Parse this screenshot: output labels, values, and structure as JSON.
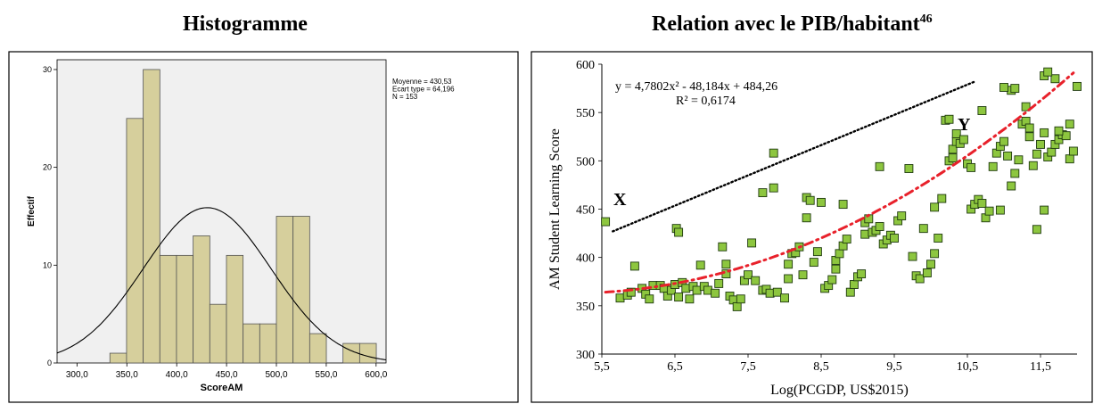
{
  "headings": {
    "left": "Histogramme",
    "right": "Relation avec le PIB/habitant",
    "right_note": "46"
  },
  "chart_data": [
    {
      "type": "bar",
      "title": "",
      "xlabel": "ScoreAM",
      "ylabel": "Effectif",
      "bin_width": 16.7,
      "bin_start": 333,
      "values": [
        1,
        25,
        30,
        11,
        11,
        13,
        6,
        11,
        4,
        4,
        15,
        15,
        3,
        0,
        2,
        2
      ],
      "xlim": [
        280,
        610
      ],
      "ylim": [
        0,
        31
      ],
      "x_ticks": [
        300,
        350,
        400,
        450,
        500,
        550,
        600
      ],
      "x_tick_labels": [
        "300,0",
        "350,0",
        "400,0",
        "450,0",
        "500,0",
        "550,0",
        "600,0"
      ],
      "y_ticks": [
        0,
        10,
        20,
        30
      ],
      "y_tick_labels": [
        "0",
        "10",
        "20",
        "30"
      ],
      "normal_curve": {
        "mean": 430.53,
        "sd": 64.196,
        "n": 153
      },
      "stats": [
        "Moyenne = 430,53",
        "Ecart type = 64,196",
        "N = 153"
      ],
      "bar_color": "#d6cf9c",
      "grid": false
    },
    {
      "type": "scatter",
      "title": "",
      "xlabel": "Log(PCGDP, US$2015)",
      "ylabel": "AM Student Learning Score",
      "xlim": [
        5.5,
        12.0
      ],
      "ylim": [
        300,
        600
      ],
      "x_ticks": [
        5.5,
        6.5,
        7.5,
        8.5,
        9.5,
        10.5,
        11.5
      ],
      "x_tick_labels": [
        "5,5",
        "6,5",
        "7,5",
        "8,5",
        "9,5",
        "10,5",
        "11,5"
      ],
      "y_ticks": [
        300,
        350,
        400,
        450,
        500,
        550,
        600
      ],
      "y_tick_labels": [
        "300",
        "350",
        "400",
        "450",
        "500",
        "550",
        "600"
      ],
      "equation": "y = 4,7802x² - 48,184x + 484,26",
      "r_squared": "R² = 0,6174",
      "label_x": "X",
      "label_y": "Y",
      "point_color": "#8dc63f",
      "trend_color": "#e8212b",
      "grid": false,
      "trend": {
        "a": 4.7802,
        "b": -48.184,
        "c": 484.26,
        "x_start": 5.55,
        "x_end": 11.95
      },
      "reference_line": {
        "x": [
          5.65,
          10.6
        ],
        "y": [
          427,
          582
        ]
      },
      "points": [
        [
          5.55,
          437
        ],
        [
          5.75,
          358
        ],
        [
          5.85,
          361
        ],
        [
          5.9,
          364
        ],
        [
          5.95,
          391
        ],
        [
          6.05,
          368
        ],
        [
          6.1,
          362
        ],
        [
          6.15,
          357
        ],
        [
          6.2,
          371
        ],
        [
          6.3,
          371
        ],
        [
          6.35,
          368
        ],
        [
          6.4,
          360
        ],
        [
          6.45,
          366
        ],
        [
          6.5,
          372
        ],
        [
          6.52,
          430
        ],
        [
          6.55,
          426
        ],
        [
          6.55,
          359
        ],
        [
          6.6,
          374
        ],
        [
          6.65,
          368
        ],
        [
          6.7,
          357
        ],
        [
          6.75,
          370
        ],
        [
          6.8,
          366
        ],
        [
          6.85,
          392
        ],
        [
          6.9,
          370
        ],
        [
          6.95,
          366
        ],
        [
          7.05,
          363
        ],
        [
          7.1,
          373
        ],
        [
          7.15,
          411
        ],
        [
          7.2,
          383
        ],
        [
          7.2,
          393
        ],
        [
          7.25,
          360
        ],
        [
          7.3,
          356
        ],
        [
          7.35,
          349
        ],
        [
          7.4,
          357
        ],
        [
          7.45,
          376
        ],
        [
          7.5,
          382
        ],
        [
          7.55,
          415
        ],
        [
          7.6,
          376
        ],
        [
          7.7,
          366
        ],
        [
          7.75,
          367
        ],
        [
          7.7,
          467
        ],
        [
          7.85,
          472
        ],
        [
          7.85,
          508
        ],
        [
          7.8,
          363
        ],
        [
          7.9,
          364
        ],
        [
          8.0,
          358
        ],
        [
          8.05,
          378
        ],
        [
          8.05,
          393
        ],
        [
          8.1,
          404
        ],
        [
          8.15,
          405
        ],
        [
          8.2,
          411
        ],
        [
          8.25,
          382
        ],
        [
          8.3,
          441
        ],
        [
          8.3,
          462
        ],
        [
          8.35,
          459
        ],
        [
          8.4,
          395
        ],
        [
          8.45,
          406
        ],
        [
          8.5,
          457
        ],
        [
          8.55,
          368
        ],
        [
          8.6,
          371
        ],
        [
          8.65,
          377
        ],
        [
          8.7,
          388
        ],
        [
          8.7,
          397
        ],
        [
          8.75,
          404
        ],
        [
          8.8,
          412
        ],
        [
          8.85,
          419
        ],
        [
          8.8,
          455
        ],
        [
          8.9,
          364
        ],
        [
          8.95,
          372
        ],
        [
          9.0,
          380
        ],
        [
          9.05,
          383
        ],
        [
          9.1,
          424
        ],
        [
          9.1,
          436
        ],
        [
          9.15,
          440
        ],
        [
          9.2,
          426
        ],
        [
          9.25,
          428
        ],
        [
          9.3,
          432
        ],
        [
          9.3,
          494
        ],
        [
          9.35,
          414
        ],
        [
          9.4,
          418
        ],
        [
          9.45,
          423
        ],
        [
          9.5,
          420
        ],
        [
          9.55,
          438
        ],
        [
          9.6,
          443
        ],
        [
          9.7,
          492
        ],
        [
          9.75,
          401
        ],
        [
          9.8,
          381
        ],
        [
          9.85,
          378
        ],
        [
          9.9,
          430
        ],
        [
          9.95,
          384
        ],
        [
          10.0,
          393
        ],
        [
          10.05,
          404
        ],
        [
          10.1,
          420
        ],
        [
          10.05,
          452
        ],
        [
          10.15,
          461
        ],
        [
          10.2,
          542
        ],
        [
          10.25,
          543
        ],
        [
          10.25,
          500
        ],
        [
          10.3,
          503
        ],
        [
          10.3,
          512
        ],
        [
          10.35,
          520
        ],
        [
          10.35,
          528
        ],
        [
          10.4,
          518
        ],
        [
          10.45,
          522
        ],
        [
          10.5,
          497
        ],
        [
          10.55,
          493
        ],
        [
          10.55,
          450
        ],
        [
          10.6,
          455
        ],
        [
          10.65,
          460
        ],
        [
          10.7,
          456
        ],
        [
          10.75,
          441
        ],
        [
          10.8,
          448
        ],
        [
          10.85,
          494
        ],
        [
          10.9,
          508
        ],
        [
          10.95,
          515
        ],
        [
          11.0,
          520
        ],
        [
          11.05,
          505
        ],
        [
          11.1,
          474
        ],
        [
          11.15,
          487
        ],
        [
          11.2,
          501
        ],
        [
          11.25,
          538
        ],
        [
          11.3,
          541
        ],
        [
          11.35,
          525
        ],
        [
          11.4,
          495
        ],
        [
          11.45,
          507
        ],
        [
          11.5,
          517
        ],
        [
          11.55,
          449
        ],
        [
          11.6,
          504
        ],
        [
          11.65,
          509
        ],
        [
          11.7,
          517
        ],
        [
          11.75,
          522
        ],
        [
          11.8,
          527
        ],
        [
          11.85,
          526
        ],
        [
          11.9,
          502
        ],
        [
          11.9,
          538
        ],
        [
          11.95,
          510
        ],
        [
          12.0,
          577
        ],
        [
          11.7,
          585
        ],
        [
          11.45,
          429
        ],
        [
          10.95,
          449
        ],
        [
          11.1,
          573
        ],
        [
          11.15,
          575
        ],
        [
          11.55,
          588
        ],
        [
          11.6,
          592
        ],
        [
          11.0,
          576
        ],
        [
          10.7,
          552
        ],
        [
          11.3,
          556
        ],
        [
          11.35,
          534
        ],
        [
          11.55,
          529
        ],
        [
          11.75,
          531
        ]
      ]
    }
  ]
}
